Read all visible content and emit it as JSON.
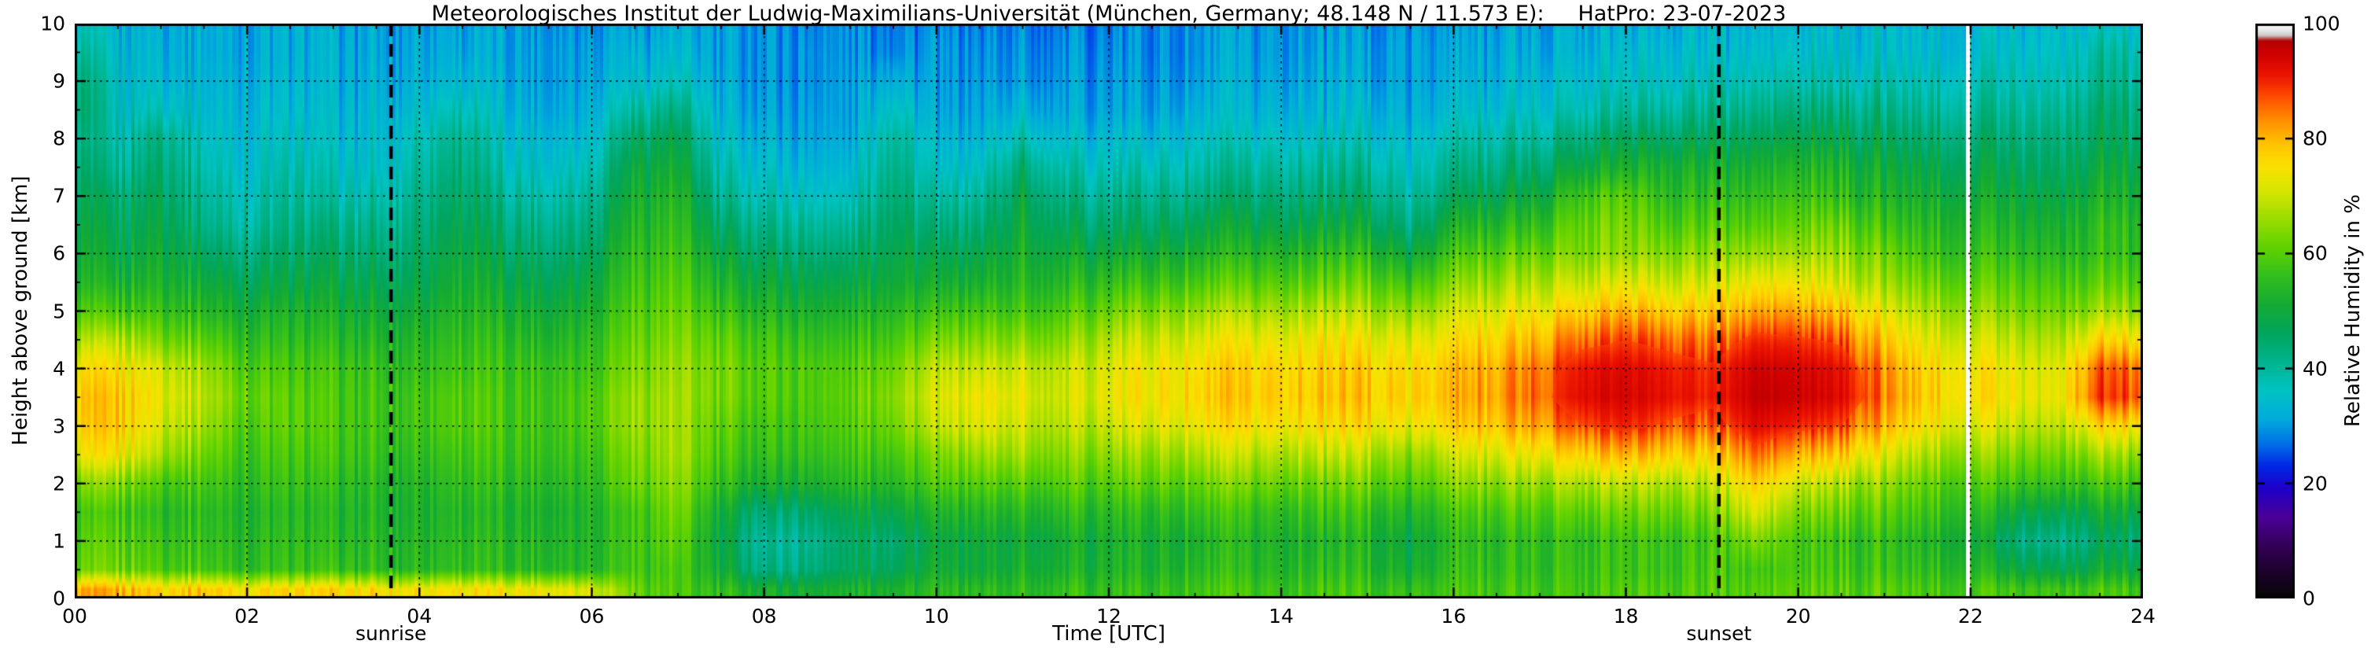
{
  "chart_data": {
    "type": "heatmap",
    "title": "Meteorologisches Institut der Ludwig-Maximilians-Universität (München, Germany; 48.148 N / 11.573 E):     HatPro: 23-07-2023",
    "xlabel": "Time [UTC]",
    "ylabel": "Height above ground [km]",
    "x_range": [
      0,
      24
    ],
    "y_range": [
      0,
      10
    ],
    "grid": "dotted",
    "x_ticks": {
      "values": [
        0,
        2,
        4,
        6,
        8,
        10,
        12,
        14,
        16,
        18,
        20,
        22,
        24
      ],
      "labels": [
        "00",
        "02",
        "04",
        "06",
        "08",
        "10",
        "12",
        "14",
        "16",
        "18",
        "20",
        "22",
        "24"
      ]
    },
    "y_ticks": {
      "values": [
        0,
        1,
        2,
        3,
        4,
        5,
        6,
        7,
        8,
        9,
        10
      ],
      "labels": [
        "0",
        "1",
        "2",
        "3",
        "4",
        "5",
        "6",
        "7",
        "8",
        "9",
        "10"
      ]
    },
    "x_minor_step": 0.5,
    "y_minor_step": 0.5,
    "colorbar": {
      "label": "Relative Humidity in %",
      "range": [
        0,
        100
      ],
      "ticks": [
        0,
        20,
        40,
        60,
        80,
        100
      ],
      "tick_labels": [
        "0",
        "20",
        "40",
        "60",
        "80",
        "100"
      ]
    },
    "colormap_stops": [
      [
        0,
        "#050505"
      ],
      [
        8,
        "#2d004b"
      ],
      [
        14,
        "#4b0096"
      ],
      [
        19,
        "#1e00c8"
      ],
      [
        23,
        "#0028e6"
      ],
      [
        27,
        "#0073e6"
      ],
      [
        31,
        "#00aadc"
      ],
      [
        36,
        "#00c3c3"
      ],
      [
        41,
        "#00b48f"
      ],
      [
        46,
        "#00a55f"
      ],
      [
        51,
        "#14aa32"
      ],
      [
        56,
        "#32be1e"
      ],
      [
        61,
        "#5fd200"
      ],
      [
        66,
        "#9bdc00"
      ],
      [
        71,
        "#d7e600"
      ],
      [
        75,
        "#fae100"
      ],
      [
        79,
        "#ffc300"
      ],
      [
        83,
        "#ff9100"
      ],
      [
        87,
        "#ff5000"
      ],
      [
        91,
        "#eb1400"
      ],
      [
        95,
        "#cd0000"
      ],
      [
        97,
        "#b40000"
      ],
      [
        98,
        "#cccccc"
      ],
      [
        99,
        "#ebebeb"
      ],
      [
        100,
        "#ffffff"
      ]
    ],
    "annotations": [
      {
        "label": "sunrise",
        "time": 3.67,
        "style": "dashed-vertical-line"
      },
      {
        "label": "sunset",
        "time": 19.08,
        "style": "dashed-vertical-line"
      }
    ],
    "data_gap_time": 21.97,
    "times": [
      0,
      0.5,
      1,
      1.5,
      2,
      2.5,
      3,
      3.5,
      4,
      4.5,
      5,
      5.5,
      6,
      6.5,
      7,
      7.5,
      8,
      8.5,
      9,
      9.5,
      10,
      10.5,
      11,
      11.5,
      12,
      12.5,
      13,
      13.5,
      14,
      14.5,
      15,
      15.5,
      16,
      16.5,
      17,
      17.5,
      18,
      18.5,
      19,
      19.5,
      20,
      20.5,
      21,
      21.5,
      22,
      22.5,
      23,
      23.5
    ],
    "heights": [
      0,
      0.15,
      0.5,
      1,
      1.5,
      2,
      2.5,
      3,
      3.5,
      4,
      4.5,
      5,
      5.5,
      6,
      6.5,
      7,
      7.5,
      8,
      8.5,
      9,
      9.5,
      10
    ],
    "values_percent_rh": [
      [
        80,
        80,
        60,
        58,
        56,
        62,
        72,
        76,
        77,
        74,
        66,
        58,
        52,
        50,
        48,
        46,
        44,
        42,
        45,
        44,
        40,
        36
      ],
      [
        80,
        80,
        62,
        60,
        58,
        64,
        74,
        78,
        78,
        75,
        68,
        58,
        52,
        48,
        46,
        44,
        40,
        38,
        36,
        35,
        34,
        33
      ],
      [
        78,
        78,
        60,
        58,
        56,
        60,
        68,
        72,
        74,
        72,
        64,
        58,
        54,
        52,
        50,
        48,
        46,
        44,
        38,
        35,
        34,
        33
      ],
      [
        78,
        78,
        58,
        56,
        55,
        58,
        62,
        66,
        68,
        66,
        60,
        54,
        50,
        46,
        42,
        40,
        38,
        36,
        34,
        33,
        32,
        32
      ],
      [
        76,
        76,
        56,
        55,
        54,
        56,
        58,
        60,
        62,
        60,
        56,
        52,
        48,
        44,
        40,
        38,
        36,
        35,
        34,
        33,
        32,
        32
      ],
      [
        76,
        76,
        56,
        55,
        54,
        56,
        58,
        60,
        60,
        58,
        55,
        52,
        48,
        45,
        42,
        40,
        38,
        36,
        34,
        33,
        32,
        32
      ],
      [
        76,
        76,
        56,
        54,
        53,
        55,
        57,
        58,
        58,
        57,
        54,
        51,
        48,
        45,
        42,
        38,
        36,
        34,
        33,
        32,
        32,
        31
      ],
      [
        75,
        75,
        55,
        54,
        53,
        54,
        56,
        57,
        57,
        56,
        53,
        50,
        47,
        44,
        41,
        38,
        35,
        34,
        33,
        32,
        31,
        31
      ],
      [
        75,
        75,
        55,
        54,
        53,
        54,
        56,
        58,
        58,
        56,
        54,
        51,
        48,
        46,
        44,
        42,
        40,
        38,
        35,
        33,
        32,
        31
      ],
      [
        75,
        75,
        56,
        55,
        54,
        56,
        58,
        60,
        60,
        58,
        56,
        54,
        52,
        50,
        48,
        46,
        44,
        42,
        38,
        34,
        32,
        31
      ],
      [
        74,
        74,
        55,
        54,
        53,
        55,
        57,
        58,
        58,
        57,
        55,
        52,
        49,
        46,
        43,
        40,
        37,
        35,
        33,
        32,
        31,
        31
      ],
      [
        74,
        74,
        55,
        54,
        53,
        55,
        57,
        58,
        58,
        57,
        54,
        51,
        48,
        45,
        42,
        39,
        36,
        34,
        32,
        31,
        31,
        30
      ],
      [
        72,
        72,
        55,
        54,
        54,
        56,
        58,
        60,
        60,
        58,
        56,
        53,
        50,
        47,
        44,
        41,
        38,
        35,
        33,
        32,
        31,
        30
      ],
      [
        62,
        62,
        58,
        58,
        58,
        62,
        64,
        66,
        66,
        64,
        62,
        60,
        58,
        56,
        54,
        52,
        50,
        46,
        40,
        35,
        33,
        31
      ],
      [
        58,
        58,
        58,
        60,
        62,
        64,
        66,
        66,
        66,
        65,
        63,
        61,
        59,
        57,
        55,
        53,
        50,
        47,
        42,
        36,
        33,
        31
      ],
      [
        55,
        55,
        50,
        48,
        50,
        55,
        58,
        60,
        62,
        62,
        60,
        56,
        52,
        48,
        44,
        40,
        37,
        34,
        32,
        31,
        30,
        30
      ],
      [
        52,
        52,
        42,
        40,
        44,
        52,
        56,
        58,
        60,
        60,
        58,
        54,
        50,
        46,
        42,
        38,
        35,
        33,
        31,
        30,
        30,
        30
      ],
      [
        52,
        52,
        44,
        42,
        46,
        53,
        57,
        59,
        60,
        60,
        57,
        53,
        49,
        45,
        41,
        37,
        34,
        32,
        31,
        30,
        30,
        29
      ],
      [
        52,
        52,
        46,
        45,
        48,
        54,
        57,
        59,
        60,
        59,
        56,
        52,
        48,
        44,
        40,
        36,
        33,
        31,
        30,
        30,
        29,
        29
      ],
      [
        54,
        54,
        48,
        46,
        50,
        56,
        60,
        64,
        66,
        64,
        60,
        56,
        52,
        50,
        48,
        46,
        44,
        42,
        38,
        34,
        30,
        29
      ],
      [
        54,
        54,
        50,
        48,
        52,
        58,
        62,
        68,
        70,
        68,
        62,
        56,
        50,
        46,
        42,
        38,
        34,
        32,
        30,
        29,
        29,
        28
      ],
      [
        55,
        55,
        50,
        50,
        54,
        60,
        66,
        72,
        74,
        70,
        64,
        58,
        52,
        48,
        44,
        40,
        36,
        33,
        31,
        30,
        29,
        28
      ],
      [
        55,
        55,
        52,
        50,
        54,
        60,
        66,
        70,
        72,
        70,
        64,
        58,
        54,
        52,
        50,
        48,
        44,
        38,
        33,
        30,
        29,
        28
      ],
      [
        56,
        56,
        52,
        51,
        55,
        60,
        64,
        68,
        70,
        69,
        64,
        59,
        54,
        50,
        46,
        42,
        38,
        34,
        31,
        30,
        29,
        28
      ],
      [
        56,
        56,
        53,
        52,
        55,
        60,
        65,
        70,
        73,
        72,
        68,
        62,
        56,
        50,
        45,
        41,
        37,
        34,
        31,
        30,
        29,
        28
      ],
      [
        56,
        56,
        53,
        52,
        55,
        61,
        66,
        72,
        75,
        74,
        70,
        64,
        57,
        51,
        46,
        42,
        38,
        34,
        31,
        30,
        29,
        29
      ],
      [
        57,
        57,
        54,
        52,
        56,
        61,
        67,
        73,
        76,
        75,
        71,
        65,
        58,
        52,
        47,
        42,
        38,
        35,
        32,
        30,
        29,
        29
      ],
      [
        57,
        57,
        54,
        53,
        56,
        62,
        68,
        74,
        77,
        76,
        72,
        66,
        59,
        53,
        48,
        43,
        39,
        35,
        32,
        31,
        30,
        29
      ],
      [
        57,
        57,
        54,
        53,
        56,
        62,
        68,
        75,
        78,
        77,
        73,
        67,
        60,
        54,
        48,
        44,
        40,
        36,
        33,
        31,
        30,
        30
      ],
      [
        58,
        58,
        55,
        53,
        57,
        62,
        69,
        75,
        78,
        77,
        74,
        68,
        61,
        55,
        49,
        44,
        40,
        36,
        33,
        32,
        31,
        30
      ],
      [
        58,
        58,
        55,
        54,
        57,
        63,
        69,
        76,
        79,
        78,
        74,
        68,
        62,
        56,
        50,
        45,
        41,
        37,
        34,
        32,
        31,
        30
      ],
      [
        55,
        55,
        50,
        48,
        52,
        58,
        64,
        72,
        76,
        75,
        71,
        64,
        56,
        48,
        42,
        38,
        35,
        33,
        31,
        30,
        30,
        29
      ],
      [
        58,
        58,
        56,
        55,
        58,
        64,
        70,
        77,
        80,
        79,
        75,
        70,
        64,
        58,
        52,
        46,
        42,
        38,
        34,
        32,
        31,
        30
      ],
      [
        58,
        58,
        56,
        55,
        59,
        65,
        72,
        79,
        82,
        81,
        77,
        72,
        66,
        60,
        54,
        48,
        43,
        39,
        35,
        33,
        32,
        31
      ],
      [
        58,
        58,
        56,
        56,
        60,
        66,
        74,
        82,
        86,
        85,
        80,
        74,
        68,
        62,
        56,
        50,
        45,
        40,
        36,
        34,
        32,
        31
      ],
      [
        58,
        58,
        57,
        56,
        61,
        68,
        78,
        88,
        93,
        92,
        86,
        78,
        70,
        64,
        62,
        58,
        50,
        44,
        38,
        35,
        33,
        32
      ],
      [
        59,
        59,
        57,
        57,
        62,
        69,
        80,
        90,
        94,
        93,
        88,
        80,
        72,
        65,
        63,
        60,
        52,
        46,
        40,
        36,
        34,
        32
      ],
      [
        59,
        59,
        57,
        57,
        62,
        68,
        78,
        87,
        92,
        91,
        86,
        78,
        70,
        64,
        59,
        55,
        52,
        46,
        40,
        36,
        34,
        32
      ],
      [
        59,
        59,
        58,
        57,
        62,
        68,
        76,
        85,
        90,
        89,
        84,
        77,
        70,
        64,
        59,
        55,
        51,
        46,
        41,
        37,
        34,
        33
      ],
      [
        60,
        60,
        58,
        64,
        72,
        78,
        86,
        93,
        96,
        95,
        90,
        82,
        74,
        66,
        60,
        56,
        52,
        47,
        42,
        38,
        35,
        33
      ],
      [
        60,
        60,
        58,
        58,
        63,
        70,
        80,
        90,
        95,
        94,
        89,
        81,
        73,
        66,
        61,
        57,
        53,
        48,
        43,
        38,
        35,
        33
      ],
      [
        60,
        60,
        58,
        57,
        62,
        68,
        78,
        88,
        93,
        92,
        87,
        79,
        71,
        66,
        62,
        56,
        53,
        48,
        43,
        38,
        35,
        34
      ],
      [
        60,
        60,
        57,
        56,
        60,
        65,
        72,
        80,
        84,
        83,
        78,
        72,
        66,
        62,
        57,
        53,
        50,
        46,
        42,
        38,
        35,
        34
      ],
      [
        59,
        59,
        56,
        54,
        58,
        62,
        68,
        75,
        78,
        77,
        73,
        68,
        63,
        58,
        55,
        52,
        49,
        45,
        41,
        38,
        35,
        34
      ],
      [
        59,
        59,
        55,
        52,
        56,
        60,
        66,
        72,
        76,
        75,
        71,
        66,
        61,
        57,
        54,
        51,
        48,
        45,
        41,
        38,
        35,
        34
      ],
      [
        58,
        58,
        50,
        44,
        50,
        58,
        64,
        70,
        74,
        73,
        69,
        64,
        60,
        56,
        53,
        50,
        47,
        44,
        41,
        38,
        36,
        34
      ],
      [
        58,
        58,
        48,
        42,
        48,
        57,
        63,
        69,
        73,
        72,
        68,
        63,
        59,
        55,
        52,
        49,
        46,
        44,
        41,
        38,
        36,
        35
      ],
      [
        58,
        58,
        50,
        45,
        50,
        58,
        66,
        76,
        88,
        86,
        76,
        66,
        60,
        56,
        55,
        52,
        49,
        46,
        44,
        41,
        39,
        35
      ]
    ]
  }
}
